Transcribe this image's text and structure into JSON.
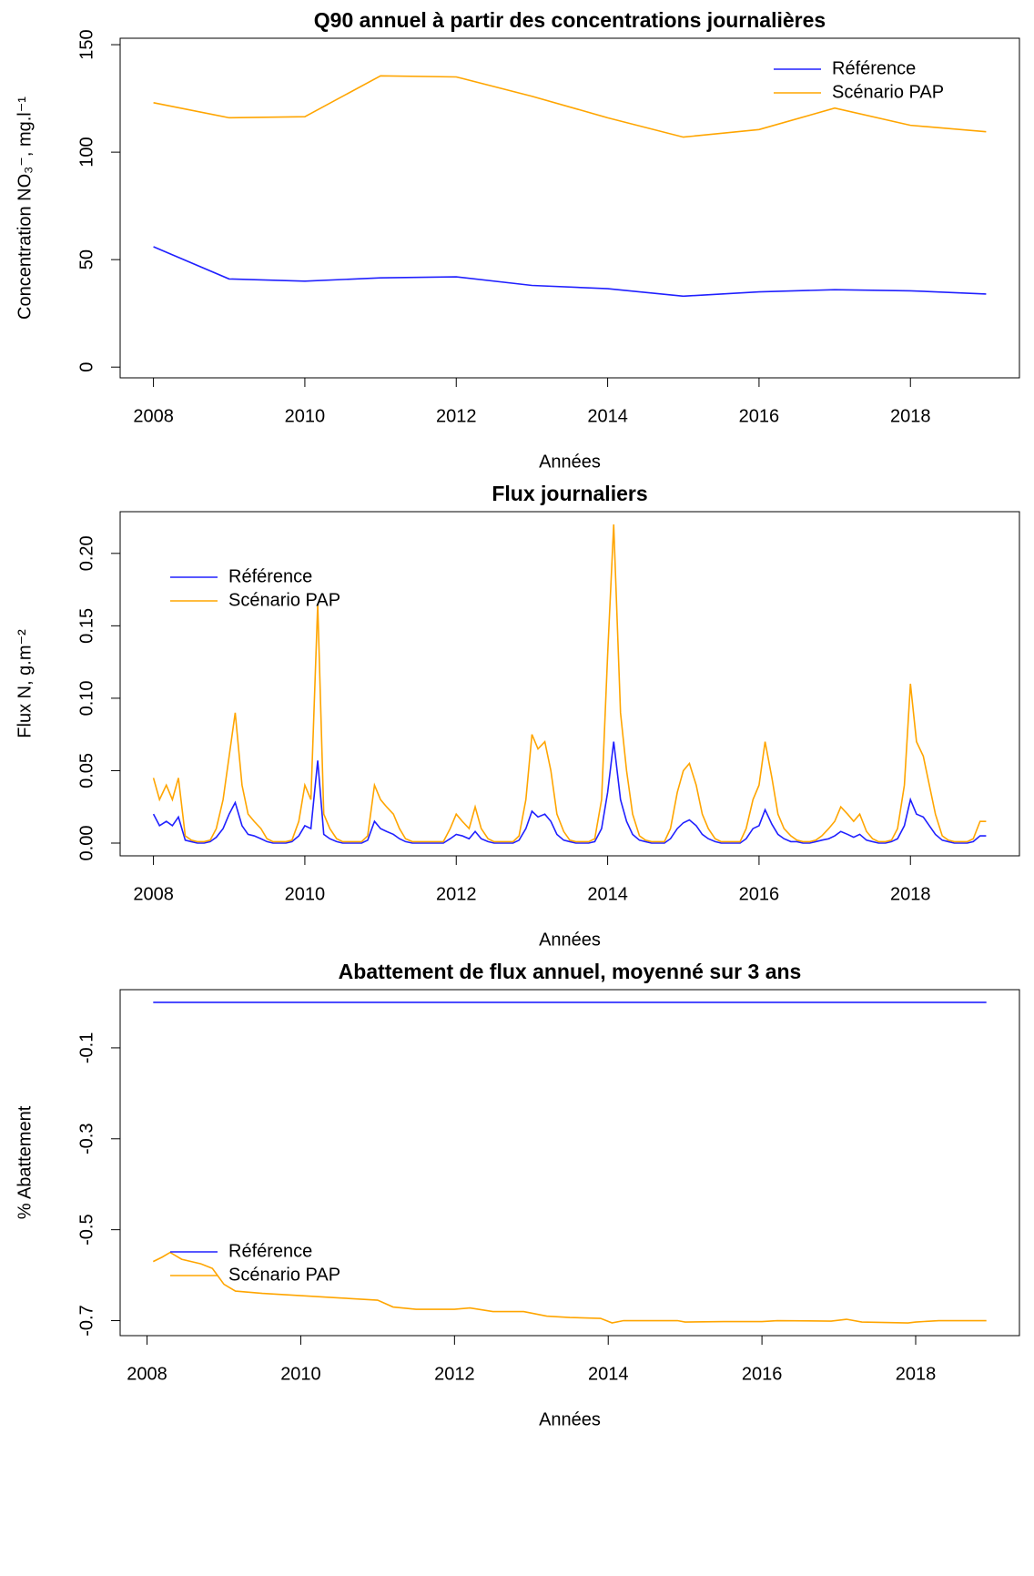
{
  "chart_data": [
    {
      "type": "line",
      "title": "Q90 annuel à partir des concentrations journalières",
      "x_label": "Années",
      "y_label": "Concentration NO₃⁻, mg.l⁻¹",
      "x": [
        2008,
        2009,
        2010,
        2011,
        2012,
        2013,
        2014,
        2015,
        2016,
        2017,
        2018,
        2019
      ],
      "series": [
        {
          "name": "Référence",
          "color": "#2020ff",
          "values": [
            56,
            41,
            40,
            41.5,
            42,
            38,
            36.5,
            33,
            35,
            36,
            35.5,
            34
          ]
        },
        {
          "name": "Scénario PAP",
          "color": "#ffa500",
          "values": [
            123,
            116,
            116.5,
            135.5,
            135,
            126,
            116,
            107,
            110.5,
            120.5,
            112.5,
            109.5
          ]
        }
      ],
      "xlim": [
        2007.56,
        2019.44
      ],
      "xticks": [
        2008,
        2010,
        2012,
        2014,
        2016,
        2018
      ],
      "ylim": [
        -5,
        153
      ],
      "yticks": [
        0,
        50,
        100,
        150
      ],
      "legend": "topright"
    },
    {
      "type": "line",
      "title": "Flux journaliers",
      "x_label": "Années",
      "y_label": "Flux N, g.m⁻²",
      "x": [
        2008,
        2008.08,
        2008.17,
        2008.25,
        2008.33,
        2008.42,
        2008.5,
        2008.58,
        2008.67,
        2008.75,
        2008.83,
        2008.92,
        2009,
        2009.08,
        2009.17,
        2009.25,
        2009.33,
        2009.42,
        2009.5,
        2009.58,
        2009.67,
        2009.75,
        2009.83,
        2009.92,
        2010,
        2010.08,
        2010.17,
        2010.25,
        2010.33,
        2010.42,
        2010.5,
        2010.58,
        2010.67,
        2010.75,
        2010.83,
        2010.92,
        2011,
        2011.08,
        2011.17,
        2011.25,
        2011.33,
        2011.42,
        2011.5,
        2011.58,
        2011.67,
        2011.75,
        2011.83,
        2011.92,
        2012,
        2012.08,
        2012.17,
        2012.25,
        2012.33,
        2012.42,
        2012.5,
        2012.58,
        2012.67,
        2012.75,
        2012.83,
        2012.92,
        2013,
        2013.08,
        2013.17,
        2013.25,
        2013.33,
        2013.42,
        2013.5,
        2013.58,
        2013.67,
        2013.75,
        2013.83,
        2013.92,
        2014,
        2014.08,
        2014.17,
        2014.25,
        2014.33,
        2014.42,
        2014.5,
        2014.58,
        2014.67,
        2014.75,
        2014.83,
        2014.92,
        2015,
        2015.08,
        2015.17,
        2015.25,
        2015.33,
        2015.42,
        2015.5,
        2015.58,
        2015.67,
        2015.75,
        2015.83,
        2015.92,
        2016,
        2016.08,
        2016.17,
        2016.25,
        2016.33,
        2016.42,
        2016.5,
        2016.58,
        2016.67,
        2016.75,
        2016.83,
        2016.92,
        2017,
        2017.08,
        2017.17,
        2017.25,
        2017.33,
        2017.42,
        2017.5,
        2017.58,
        2017.67,
        2017.75,
        2017.83,
        2017.92,
        2018,
        2018.08,
        2018.17,
        2018.25,
        2018.33,
        2018.42,
        2018.5,
        2018.58,
        2018.67,
        2018.75,
        2018.83,
        2018.92,
        2019
      ],
      "series": [
        {
          "name": "Référence",
          "color": "#2020ff",
          "values": [
            0.02,
            0.012,
            0.015,
            0.012,
            0.018,
            0.002,
            0.001,
            0,
            0,
            0.001,
            0.004,
            0.01,
            0.02,
            0.028,
            0.012,
            0.006,
            0.005,
            0.003,
            0.001,
            0,
            0,
            0,
            0.001,
            0.005,
            0.012,
            0.01,
            0.057,
            0.006,
            0.003,
            0.001,
            0,
            0,
            0,
            0,
            0.002,
            0.015,
            0.01,
            0.008,
            0.006,
            0.003,
            0.001,
            0,
            0,
            0,
            0,
            0,
            0,
            0.003,
            0.006,
            0.005,
            0.003,
            0.008,
            0.003,
            0.001,
            0,
            0,
            0,
            0,
            0.002,
            0.01,
            0.022,
            0.018,
            0.02,
            0.015,
            0.006,
            0.002,
            0.001,
            0,
            0,
            0,
            0.001,
            0.01,
            0.035,
            0.07,
            0.03,
            0.015,
            0.006,
            0.002,
            0.001,
            0,
            0,
            0,
            0.003,
            0.01,
            0.014,
            0.016,
            0.012,
            0.006,
            0.003,
            0.001,
            0,
            0,
            0,
            0,
            0.003,
            0.01,
            0.012,
            0.023,
            0.013,
            0.006,
            0.003,
            0.001,
            0.001,
            0,
            0,
            0.001,
            0.002,
            0.003,
            0.005,
            0.008,
            0.006,
            0.004,
            0.006,
            0.002,
            0.001,
            0,
            0,
            0.001,
            0.003,
            0.012,
            0.03,
            0.02,
            0.018,
            0.012,
            0.006,
            0.002,
            0.001,
            0,
            0,
            0,
            0.001,
            0.005,
            0.005
          ]
        },
        {
          "name": "Scénario PAP",
          "color": "#ffa500",
          "values": [
            0.045,
            0.03,
            0.04,
            0.03,
            0.045,
            0.005,
            0.002,
            0.001,
            0.001,
            0.002,
            0.01,
            0.03,
            0.06,
            0.09,
            0.04,
            0.02,
            0.015,
            0.01,
            0.003,
            0.001,
            0.001,
            0.001,
            0.002,
            0.015,
            0.04,
            0.03,
            0.165,
            0.02,
            0.01,
            0.003,
            0.001,
            0.001,
            0.001,
            0.001,
            0.005,
            0.04,
            0.03,
            0.025,
            0.02,
            0.01,
            0.003,
            0.001,
            0.001,
            0.001,
            0.001,
            0.001,
            0.001,
            0.01,
            0.02,
            0.015,
            0.01,
            0.025,
            0.01,
            0.003,
            0.001,
            0.001,
            0.001,
            0.001,
            0.005,
            0.03,
            0.075,
            0.065,
            0.07,
            0.05,
            0.02,
            0.008,
            0.002,
            0.001,
            0.001,
            0.001,
            0.003,
            0.03,
            0.13,
            0.22,
            0.09,
            0.05,
            0.02,
            0.005,
            0.002,
            0.001,
            0.001,
            0.001,
            0.01,
            0.035,
            0.05,
            0.055,
            0.04,
            0.02,
            0.01,
            0.003,
            0.001,
            0.001,
            0.001,
            0.001,
            0.01,
            0.03,
            0.04,
            0.07,
            0.045,
            0.02,
            0.01,
            0.005,
            0.002,
            0.001,
            0.001,
            0.002,
            0.005,
            0.01,
            0.015,
            0.025,
            0.02,
            0.015,
            0.02,
            0.008,
            0.003,
            0.001,
            0.001,
            0.002,
            0.01,
            0.04,
            0.11,
            0.07,
            0.06,
            0.04,
            0.02,
            0.005,
            0.002,
            0.001,
            0.001,
            0.001,
            0.003,
            0.015,
            0.015
          ]
        }
      ],
      "xlim": [
        2007.56,
        2019.44
      ],
      "xticks": [
        2008,
        2010,
        2012,
        2014,
        2016,
        2018
      ],
      "ylim": [
        -0.0088,
        0.2288
      ],
      "yticks": [
        {
          "value": 0,
          "label": "0.00"
        },
        0.05,
        {
          "value": 0.1,
          "label": "0.10"
        },
        0.15,
        {
          "value": 0.2,
          "label": "0.20"
        }
      ],
      "legend": "topleft"
    },
    {
      "type": "line",
      "title": "Abattement de flux annuel, moyenné sur 3 ans",
      "x_label": "Années",
      "y_label": "% Abattement",
      "series": [
        {
          "name": "Référence",
          "color": "#2020ff",
          "x": [
            2008.08,
            2018.92
          ],
          "values": [
            0,
            0
          ]
        },
        {
          "name": "Scénario PAP",
          "color": "#ffa500",
          "x": [
            2008.08,
            2008.2,
            2008.3,
            2008.45,
            2008.7,
            2008.85,
            2009,
            2009.15,
            2009.5,
            2010,
            2010.5,
            2011,
            2011.2,
            2011.5,
            2012,
            2012.2,
            2012.5,
            2012.9,
            2013.2,
            2013.5,
            2013.9,
            2014.05,
            2014.2,
            2014.9,
            2015,
            2015.5,
            2016,
            2016.2,
            2016.9,
            2017.1,
            2017.3,
            2017.9,
            2018,
            2018.3,
            2018.92
          ],
          "values": [
            -0.57,
            -0.56,
            -0.55,
            -0.565,
            -0.575,
            -0.585,
            -0.62,
            -0.635,
            -0.64,
            -0.645,
            -0.65,
            -0.655,
            -0.67,
            -0.675,
            -0.675,
            -0.672,
            -0.68,
            -0.68,
            -0.69,
            -0.693,
            -0.695,
            -0.705,
            -0.7,
            -0.7,
            -0.703,
            -0.702,
            -0.702,
            -0.7,
            -0.701,
            -0.697,
            -0.703,
            -0.705,
            -0.703,
            -0.7,
            -0.7
          ]
        }
      ],
      "xlim": [
        2007.65,
        2019.35
      ],
      "xticks": [
        2008,
        2010,
        2012,
        2014,
        2016,
        2018
      ],
      "ylim": [
        -0.733,
        0.028
      ],
      "yticks": [
        -0.7,
        -0.5,
        -0.3,
        -0.1
      ],
      "legend": "bottomleft"
    }
  ]
}
